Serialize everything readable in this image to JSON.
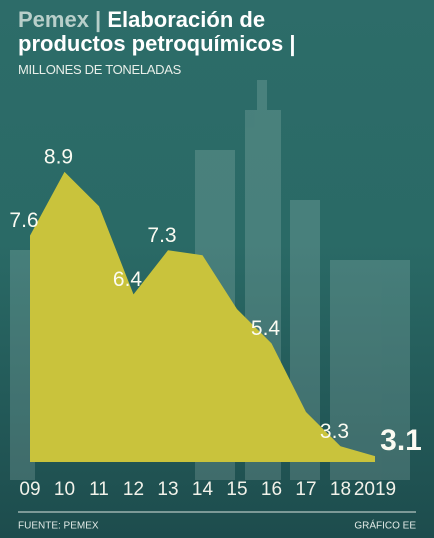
{
  "chart_data": {
    "type": "area",
    "title": [
      "Pemex |",
      "Elaboración de productos petroquímicos |"
    ],
    "subtitle": "MILLONES DE TONELADAS",
    "categories": [
      "09",
      "10",
      "11",
      "12",
      "13",
      "14",
      "15",
      "16",
      "17",
      "18",
      "2019"
    ],
    "values": [
      7.6,
      8.9,
      8.2,
      6.4,
      7.3,
      7.2,
      6.1,
      5.4,
      4.0,
      3.3,
      3.1
    ],
    "value_labels": [
      "7.6",
      "8.9",
      null,
      "6.4",
      "7.3",
      null,
      null,
      "5.4",
      null,
      "3.3",
      "3.1"
    ],
    "color": "#c9c33c",
    "source": "FUENTE: PEMEX",
    "credit": "GRÁFICO EE"
  }
}
